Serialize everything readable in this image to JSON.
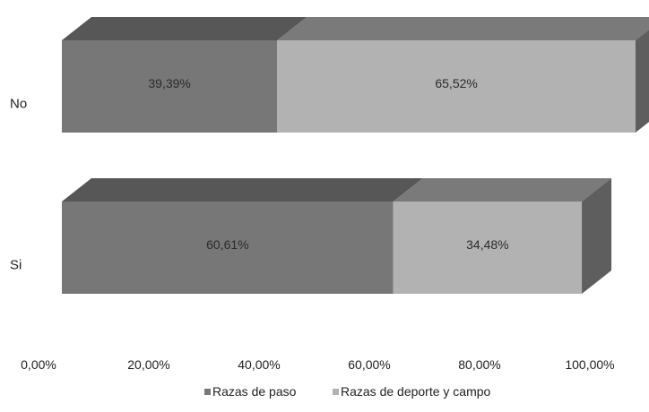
{
  "chart_data": {
    "type": "bar",
    "orientation": "horizontal",
    "stacked": true,
    "three_d": true,
    "categories": [
      "No",
      "Si"
    ],
    "series": [
      {
        "name": "Razas de paso",
        "values": [
          39.39,
          60.61
        ],
        "labels": [
          "39,39%",
          "60,61%"
        ],
        "color": "#777777",
        "top_color": "#575757",
        "side_color": "#575757"
      },
      {
        "name": "Razas de deporte y campo",
        "values": [
          65.52,
          34.48
        ],
        "labels": [
          "65,52%",
          "34,48%"
        ],
        "color": "#b2b2b2",
        "top_color": "#7a7a7a",
        "side_color": "#5e5e5e"
      }
    ],
    "x_ticks": [
      0,
      20,
      40,
      60,
      80,
      100
    ],
    "x_tick_labels": [
      "0,00%",
      "20,00%",
      "40,00%",
      "60,00%",
      "80,00%",
      "100,00%"
    ],
    "xlim": [
      0,
      100
    ],
    "grid": false,
    "legend_position": "bottom"
  }
}
